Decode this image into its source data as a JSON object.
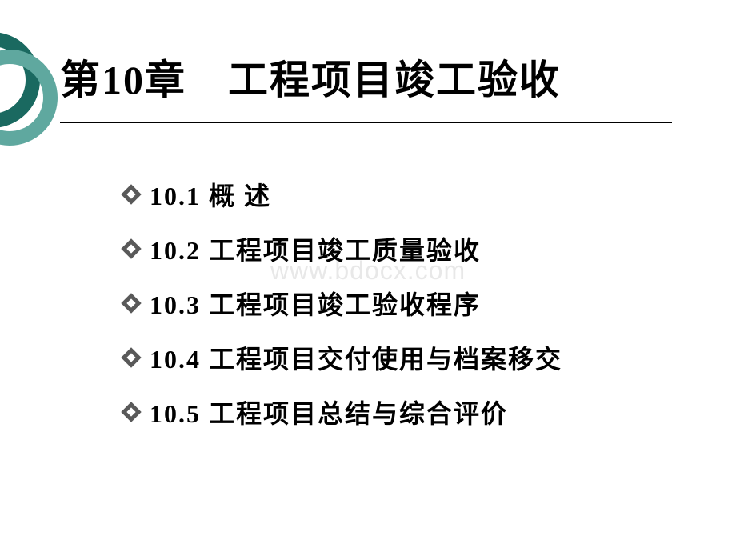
{
  "colors": {
    "teal_dark": "#1a6960",
    "teal_light": "#5fa89f",
    "bullet_color": "#595959",
    "text_color": "#000000",
    "watermark_color": "#e8e8e8"
  },
  "typography": {
    "title_fontsize": 50,
    "item_fontsize": 32,
    "watermark_fontsize": 32
  },
  "title": "第10章　工程项目竣工验收",
  "items": [
    "10.1 概 述",
    "10.2 工程项目竣工质量验收",
    "10.3 工程项目竣工验收程序",
    "10.4 工程项目交付使用与档案移交",
    "10.5 工程项目总结与综合评价"
  ],
  "watermark": "www.bdocx.com"
}
